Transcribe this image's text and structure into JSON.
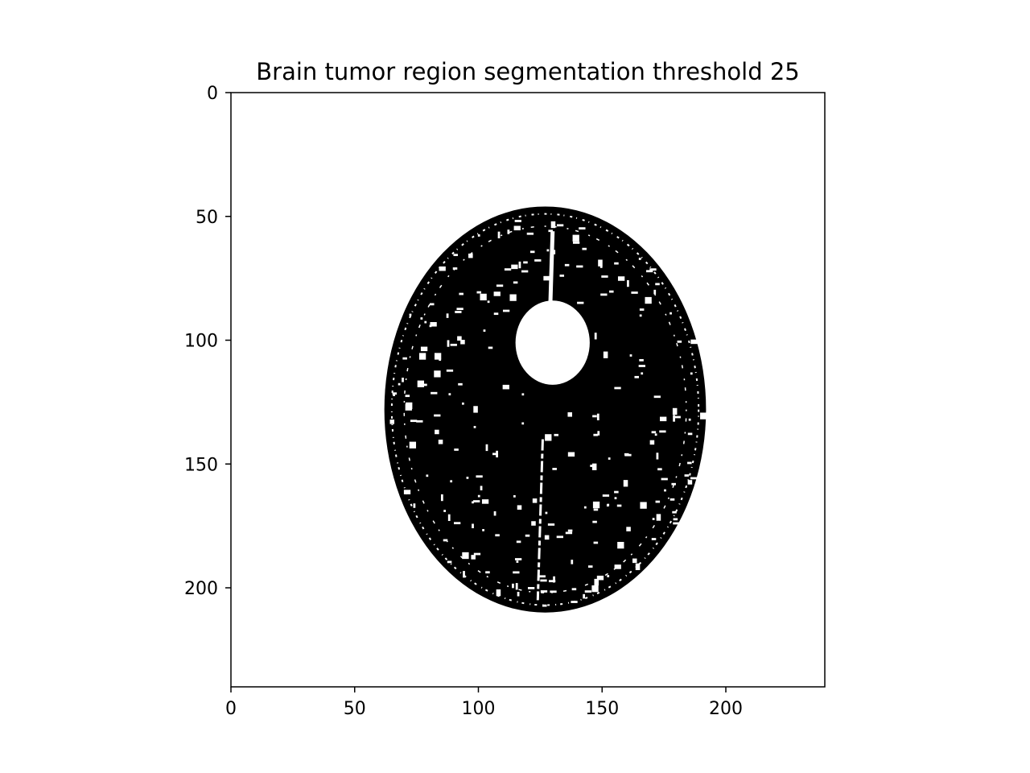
{
  "chart_data": {
    "type": "heatmap",
    "title": "Brain tumor region segmentation threshold 25",
    "xlabel": "",
    "ylabel": "",
    "xlim": [
      0,
      240
    ],
    "ylim": [
      240,
      0
    ],
    "x_ticks": [
      0,
      50,
      100,
      150,
      200
    ],
    "y_ticks": [
      0,
      50,
      100,
      150,
      200
    ],
    "x_tick_labels": [
      "0",
      "50",
      "100",
      "150",
      "200"
    ],
    "y_tick_labels": [
      "0",
      "50",
      "100",
      "150",
      "200"
    ],
    "grid": false,
    "legend": "none",
    "colors": {
      "foreground": "#000000",
      "background": "#ffffff"
    },
    "regions": {
      "brain_mask": {
        "cx": 127,
        "cy": 128,
        "rx": 65,
        "ry": 82
      },
      "tumor_lesion": {
        "cx": 130,
        "cy": 101,
        "rx": 15,
        "ry": 17
      },
      "midline_fissure_top": {
        "x": 130,
        "y_start": 56,
        "y_end": 88
      },
      "midline_fissure_bottom": {
        "x": 126,
        "y_start": 140,
        "y_end": 205
      }
    }
  }
}
